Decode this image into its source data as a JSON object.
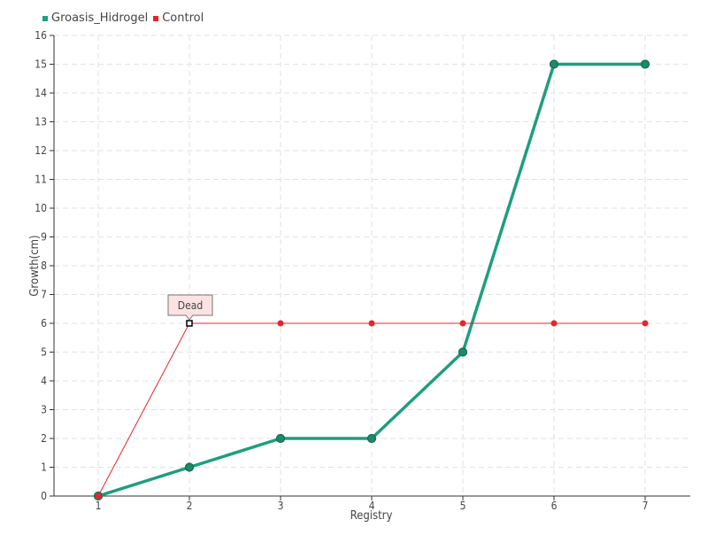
{
  "chart_data": {
    "type": "line",
    "xlabel": "Registry",
    "ylabel": "Growth(cm)",
    "categories": [
      "1",
      "2",
      "3",
      "4",
      "5",
      "6",
      "7"
    ],
    "ylim": [
      0,
      16
    ],
    "yticks": [
      0,
      1,
      2,
      3,
      4,
      5,
      6,
      7,
      8,
      9,
      10,
      11,
      12,
      13,
      14,
      15,
      16
    ],
    "grid": true,
    "legend_position": "top-left",
    "series": [
      {
        "name": "Groasis_Hidrogel",
        "color": "#1e9e7e",
        "values": [
          0,
          1,
          2,
          2,
          5,
          15,
          15
        ]
      },
      {
        "name": "Control",
        "color": "#e8232a",
        "values": [
          0,
          6,
          6,
          6,
          6,
          6,
          6
        ]
      }
    ],
    "annotations": [
      {
        "series": "Control",
        "x": "2",
        "y": 6,
        "text": "Dead"
      }
    ]
  }
}
